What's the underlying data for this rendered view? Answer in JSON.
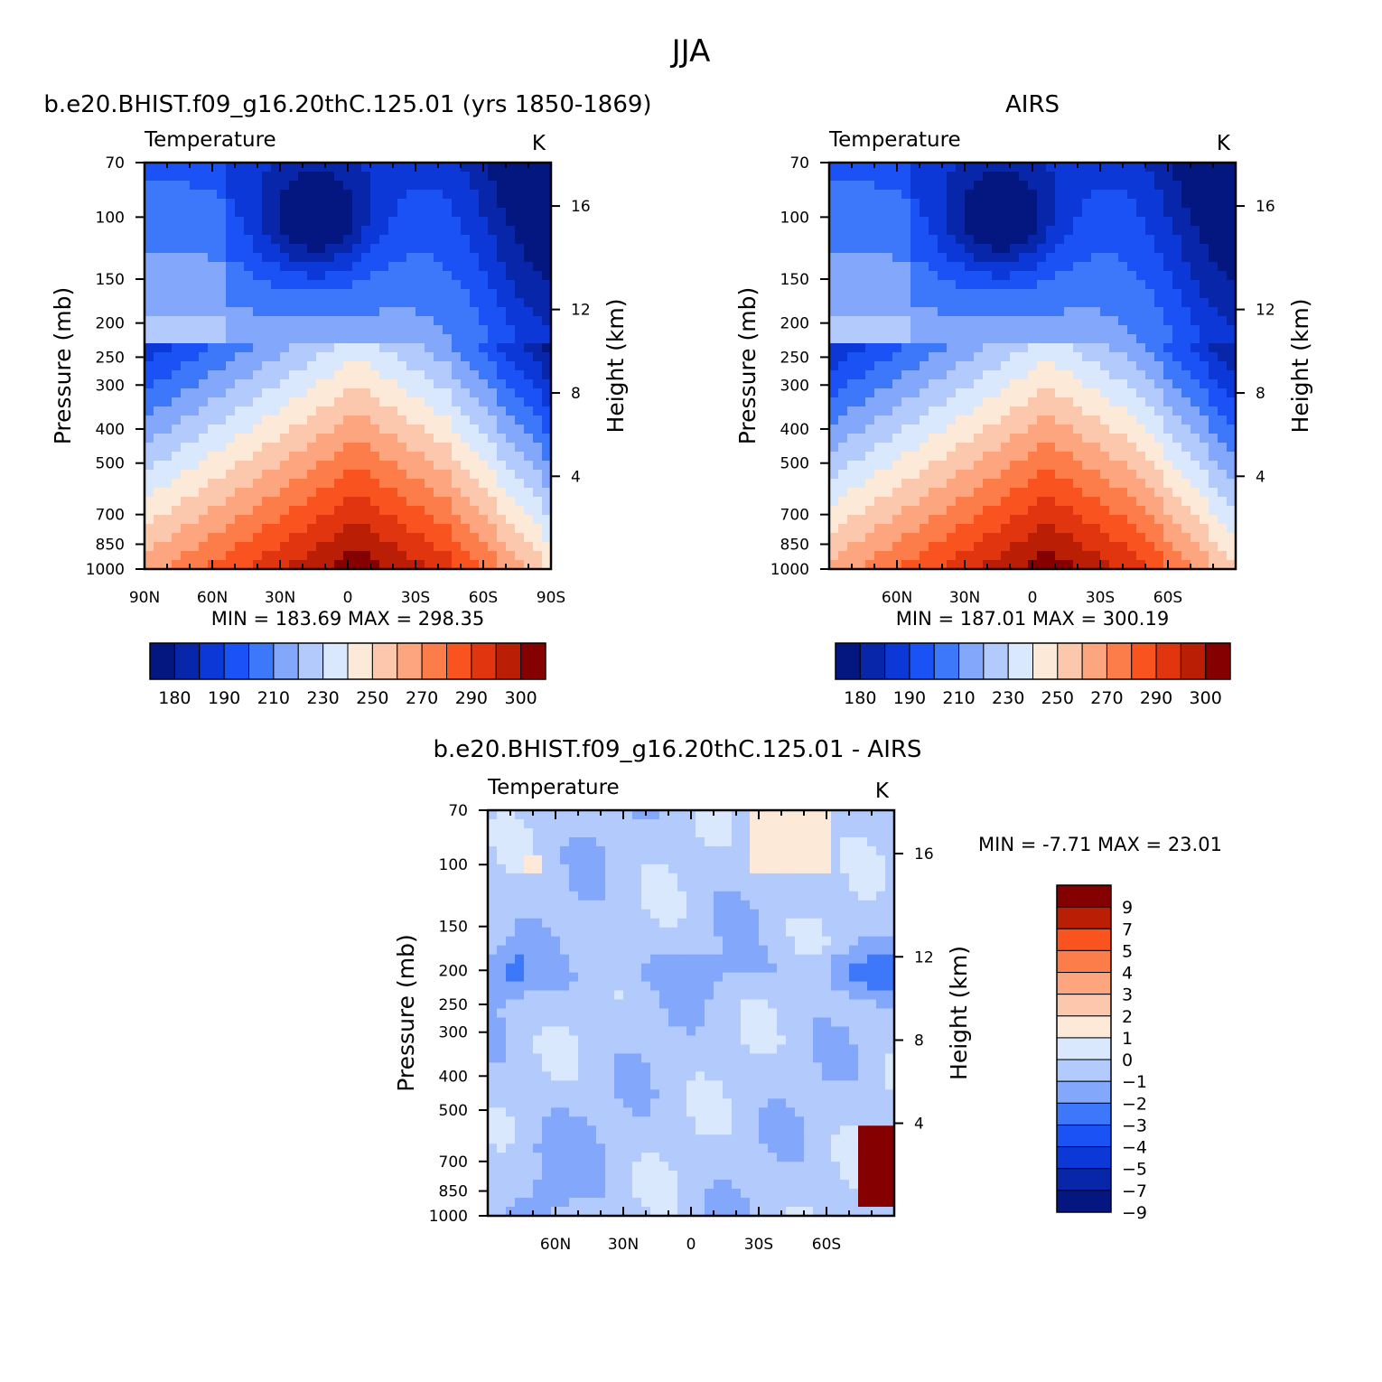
{
  "figure": {
    "title": "JJA"
  },
  "colors": {
    "abs": [
      "#04167f",
      "#0726a9",
      "#0b38d6",
      "#1a52f5",
      "#3e78fa",
      "#83a8fb",
      "#b3cbfc",
      "#d9e8fc",
      "#fde9d8",
      "#fcc8ad",
      "#fca57e",
      "#fc7d4a",
      "#f9541f",
      "#e13510",
      "#ba1f05",
      "#850000"
    ],
    "diff": [
      "#04167f",
      "#0726a9",
      "#0b38d6",
      "#1a52f5",
      "#3e78fa",
      "#83a8fb",
      "#b3cbfc",
      "#d9e8fc",
      "#fde9d8",
      "#fcc8ad",
      "#fca57e",
      "#fc7d4a",
      "#f9541f",
      "#ba1f05",
      "#850000"
    ]
  },
  "chart_data": [
    {
      "type": "heatmap",
      "panel_title": "b.e20.BHIST.f09_g16.20thC.125.01 (yrs 1850-1869)",
      "variable": "Temperature",
      "units": "K",
      "ylabel": "Pressure (mb)",
      "ylabel_right": "Height (km)",
      "y_ticks": [
        "70",
        "100",
        "150",
        "200",
        "250",
        "300",
        "400",
        "500",
        "700",
        "850",
        "1000"
      ],
      "y_right_ticks": [
        "16",
        "12",
        "8",
        "4"
      ],
      "x_ticks": [
        "90N",
        "60N",
        "30N",
        "0",
        "30S",
        "60S",
        "90S"
      ],
      "stats": "MIN = 183.69 MAX = 298.35",
      "colorbar_labels": [
        "180",
        "190",
        "210",
        "230",
        "250",
        "270",
        "290",
        "300"
      ]
    },
    {
      "type": "heatmap",
      "panel_title": "AIRS",
      "variable": "Temperature",
      "units": "K",
      "ylabel": "Pressure (mb)",
      "ylabel_right": "Height (km)",
      "y_ticks": [
        "70",
        "100",
        "150",
        "200",
        "250",
        "300",
        "400",
        "500",
        "700",
        "850",
        "1000"
      ],
      "y_right_ticks": [
        "16",
        "12",
        "8",
        "4"
      ],
      "x_ticks": [
        "60N",
        "30N",
        "0",
        "30S",
        "60S"
      ],
      "stats": "MIN = 187.01 MAX = 300.19",
      "colorbar_labels": [
        "180",
        "190",
        "210",
        "230",
        "250",
        "270",
        "290",
        "300"
      ]
    },
    {
      "type": "heatmap",
      "panel_title": "b.e20.BHIST.f09_g16.20thC.125.01 - AIRS",
      "variable": "Temperature",
      "units": "K",
      "ylabel": "Pressure (mb)",
      "ylabel_right": "Height (km)",
      "y_ticks": [
        "70",
        "100",
        "150",
        "200",
        "250",
        "300",
        "400",
        "500",
        "700",
        "850",
        "1000"
      ],
      "y_right_ticks": [
        "16",
        "12",
        "8",
        "4"
      ],
      "x_ticks": [
        "60N",
        "30N",
        "0",
        "30S",
        "60S"
      ],
      "stats": "MIN = -7.71 MAX = 23.01",
      "colorbar_labels": [
        "9",
        "7",
        "5",
        "4",
        "3",
        "2",
        "1",
        "0",
        "-1",
        "-2",
        "-3",
        "-4",
        "-5",
        "-7",
        "-9"
      ]
    }
  ]
}
